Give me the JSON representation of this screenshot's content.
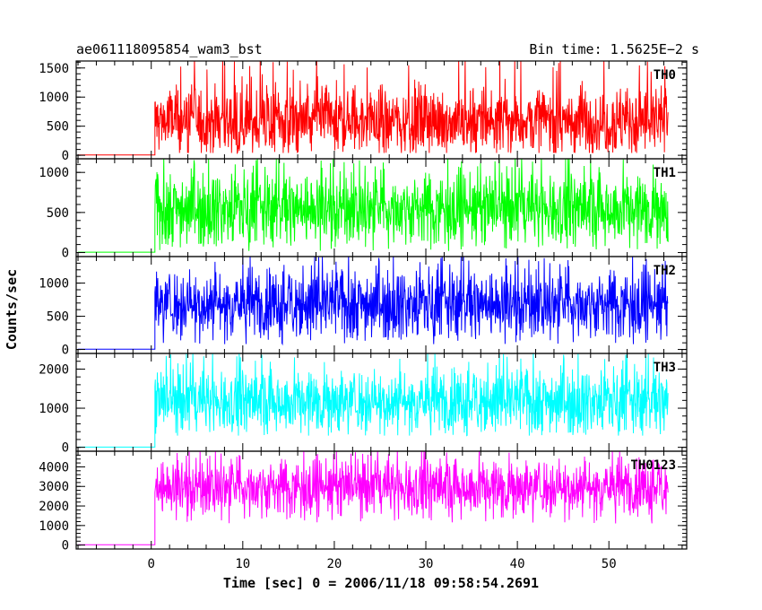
{
  "header": {
    "title": "ae061118095854_wam3_bst",
    "bin_time": "Bin time: 1.5625E−2 s"
  },
  "xlabel": "Time [sec] 0 = 2006/11/18 09:58:54.2691",
  "ylabel": "Counts/sec",
  "chart_data": {
    "type": "line",
    "title": "ae061118095854_wam3_bst",
    "xlabel": "Time [sec] 0 = 2006/11/18 09:58:54.2691",
    "ylabel": "Counts/sec",
    "xlim": [
      -8.2,
      58.5
    ],
    "x_ticks": [
      0,
      10,
      20,
      30,
      40,
      50
    ],
    "x_tick_labels": [
      "0",
      "10",
      "20",
      "30",
      "40",
      "50"
    ],
    "data_x_range": [
      -8,
      56.5
    ],
    "burst_start": 0.4,
    "panels": [
      {
        "name": "TH0",
        "color": "#ff0000",
        "ylim": [
          -60,
          1620
        ],
        "yticks": [
          0,
          500,
          1000,
          1500
        ],
        "ytick_labels": [
          "0",
          "500",
          "1000",
          "1500"
        ],
        "pre_level": 5,
        "post_mean": 600,
        "post_min": 40,
        "post_max": 1620
      },
      {
        "name": "TH1",
        "color": "#00ff00",
        "ylim": [
          -50,
          1170
        ],
        "yticks": [
          0,
          500,
          1000
        ],
        "ytick_labels": [
          "0",
          "500",
          "1000"
        ],
        "pre_level": 5,
        "post_mean": 560,
        "post_min": 20,
        "post_max": 1170
      },
      {
        "name": "TH2",
        "color": "#0000ff",
        "ylim": [
          -60,
          1400
        ],
        "yticks": [
          0,
          500,
          1000
        ],
        "ytick_labels": [
          "0",
          "500",
          "1000"
        ],
        "pre_level": 5,
        "post_mean": 700,
        "post_min": 80,
        "post_max": 1400
      },
      {
        "name": "TH3",
        "color": "#00ffff",
        "ylim": [
          -100,
          2400
        ],
        "yticks": [
          0,
          1000,
          2000
        ],
        "ytick_labels": [
          "0",
          "1000",
          "2000"
        ],
        "pre_level": 5,
        "post_mean": 1200,
        "post_min": 300,
        "post_max": 2400
      },
      {
        "name": "TH0123",
        "color": "#ff00ff",
        "ylim": [
          -200,
          4800
        ],
        "yticks": [
          0,
          1000,
          2000,
          3000,
          4000
        ],
        "ytick_labels": [
          "0",
          "1000",
          "2000",
          "3000",
          "4000"
        ],
        "pre_level": 20,
        "post_mean": 3000,
        "post_min": 1100,
        "post_max": 4800
      }
    ]
  }
}
